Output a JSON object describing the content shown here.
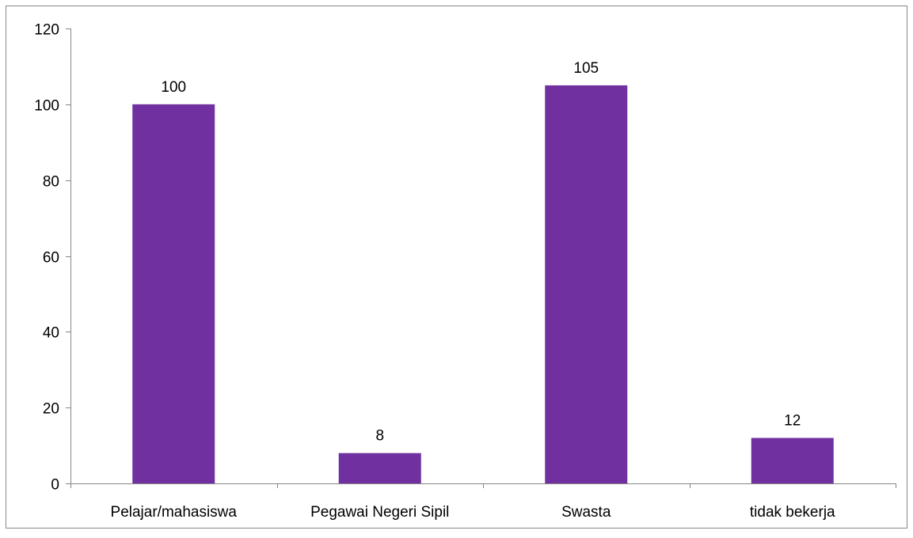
{
  "chart_data": {
    "type": "bar",
    "categories": [
      "Pelajar/mahasiswa",
      "Pegawai Negeri Sipil",
      "Swasta",
      "tidak bekerja"
    ],
    "values": [
      100,
      8,
      105,
      12
    ],
    "data_labels": [
      "100",
      "8",
      "105",
      "12"
    ],
    "y_ticks": [
      "0",
      "20",
      "40",
      "60",
      "80",
      "100",
      "120"
    ],
    "ylim": [
      0,
      120
    ],
    "title": "",
    "xlabel": "",
    "ylabel": "",
    "grid": false,
    "legend": "none",
    "colors": {
      "bar": "#7030A0",
      "axis": "#868686",
      "border": "#868686",
      "text": "#000000"
    }
  }
}
